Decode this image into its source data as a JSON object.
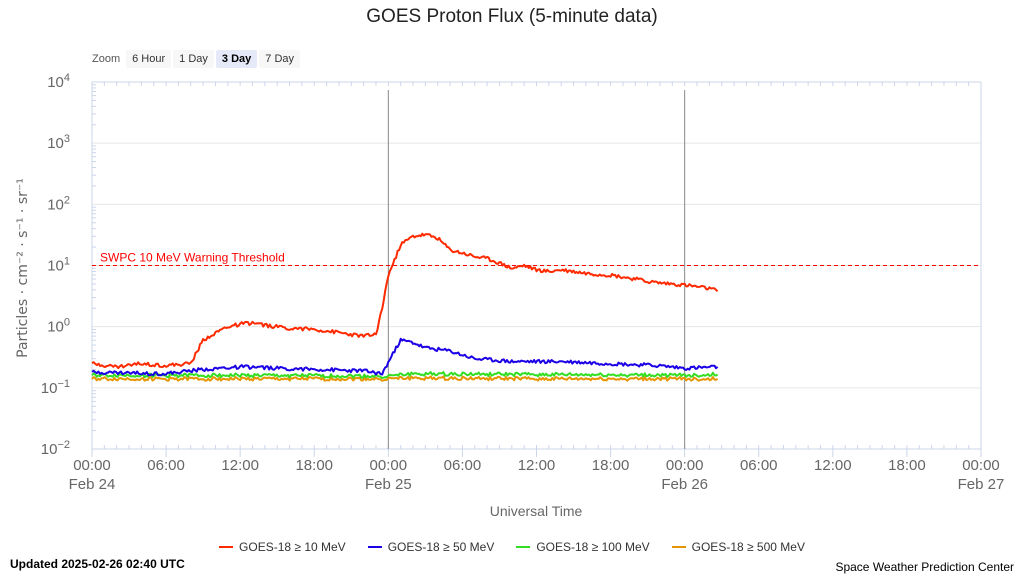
{
  "title": "GOES Proton Flux (5-minute data)",
  "zoom": {
    "label": "Zoom",
    "buttons": [
      "6 Hour",
      "1 Day",
      "3 Day",
      "7 Day"
    ],
    "active": "3 Day"
  },
  "updated": "Updated 2025-02-26 02:40 UTC",
  "credit": "Space Weather Prediction Center",
  "chart_data": {
    "type": "line",
    "title": "GOES Proton Flux (5-minute data)",
    "xlabel": "Universal Time",
    "ylabel": "Particles · cm⁻² · s⁻¹ · sr⁻¹",
    "y_scale": "log",
    "ylim": [
      0.01,
      10000
    ],
    "y_tick_labels": [
      {
        "base": "10",
        "exp": "4",
        "value": 10000
      },
      {
        "base": "10",
        "exp": "3",
        "value": 1000
      },
      {
        "base": "10",
        "exp": "2",
        "value": 100
      },
      {
        "base": "10",
        "exp": "1",
        "value": 10
      },
      {
        "base": "10",
        "exp": "0",
        "value": 1
      },
      {
        "base": "10",
        "exp": "−1",
        "value": 0.1
      },
      {
        "base": "10",
        "exp": "−2",
        "value": 0.01
      }
    ],
    "x_range": [
      "2025-02-24 00:00",
      "2025-02-27 00:00"
    ],
    "x_tick_labels": [
      {
        "time": "00:00",
        "date": "Feb 24"
      },
      {
        "time": "06:00",
        "date": ""
      },
      {
        "time": "12:00",
        "date": ""
      },
      {
        "time": "18:00",
        "date": ""
      },
      {
        "time": "00:00",
        "date": "Feb 25"
      },
      {
        "time": "06:00",
        "date": ""
      },
      {
        "time": "12:00",
        "date": ""
      },
      {
        "time": "18:00",
        "date": ""
      },
      {
        "time": "00:00",
        "date": "Feb 26"
      },
      {
        "time": "06:00",
        "date": ""
      },
      {
        "time": "12:00",
        "date": ""
      },
      {
        "time": "18:00",
        "date": ""
      },
      {
        "time": "00:00",
        "date": "Feb 27"
      }
    ],
    "grid": true,
    "legend_position": "bottom",
    "threshold": {
      "label": "SWPC 10 MeV Warning Threshold",
      "value": 10,
      "color": "#ff0000"
    },
    "day_markers": [
      "2025-02-25 00:00",
      "2025-02-26 00:00"
    ],
    "series": [
      {
        "name": "GOES-18 ≥ 10 MeV",
        "color": "#ff2a00",
        "x": [
          "2025-02-24 00:00",
          "2025-02-24 02:00",
          "2025-02-24 04:00",
          "2025-02-24 06:00",
          "2025-02-24 08:00",
          "2025-02-24 09:00",
          "2025-02-24 10:00",
          "2025-02-24 11:00",
          "2025-02-24 12:00",
          "2025-02-24 13:00",
          "2025-02-24 14:00",
          "2025-02-24 16:00",
          "2025-02-24 18:00",
          "2025-02-24 20:00",
          "2025-02-24 22:00",
          "2025-02-24 23:00",
          "2025-02-24 23:30",
          "2025-02-25 00:00",
          "2025-02-25 00:30",
          "2025-02-25 01:00",
          "2025-02-25 02:00",
          "2025-02-25 03:00",
          "2025-02-25 04:00",
          "2025-02-25 05:00",
          "2025-02-25 06:00",
          "2025-02-25 07:00",
          "2025-02-25 08:00",
          "2025-02-25 09:00",
          "2025-02-25 10:00",
          "2025-02-25 11:00",
          "2025-02-25 12:00",
          "2025-02-25 13:00",
          "2025-02-25 14:00",
          "2025-02-25 15:00",
          "2025-02-25 16:00",
          "2025-02-25 17:00",
          "2025-02-25 18:00",
          "2025-02-25 19:00",
          "2025-02-25 20:00",
          "2025-02-25 21:00",
          "2025-02-25 22:00",
          "2025-02-25 23:00",
          "2025-02-26 00:00",
          "2025-02-26 01:00",
          "2025-02-26 02:00",
          "2025-02-26 02:40"
        ],
        "values": [
          0.25,
          0.22,
          0.25,
          0.23,
          0.25,
          0.6,
          0.8,
          1.0,
          1.1,
          1.15,
          1.05,
          0.95,
          0.9,
          0.8,
          0.7,
          0.75,
          2.0,
          7.0,
          12.0,
          22.0,
          30.0,
          32.0,
          28.0,
          18.0,
          16.0,
          14.0,
          13.0,
          11.0,
          9.0,
          10.0,
          8.5,
          8.0,
          8.5,
          8.0,
          7.5,
          7.2,
          7.0,
          6.5,
          6.0,
          5.5,
          5.2,
          5.0,
          4.8,
          4.5,
          4.2,
          3.8
        ]
      },
      {
        "name": "GOES-18 ≥ 50 MeV",
        "color": "#1c00e6",
        "x": [
          "2025-02-24 00:00",
          "2025-02-24 06:00",
          "2025-02-24 09:00",
          "2025-02-24 12:00",
          "2025-02-24 18:00",
          "2025-02-24 22:00",
          "2025-02-24 23:30",
          "2025-02-25 00:30",
          "2025-02-25 01:00",
          "2025-02-25 02:00",
          "2025-02-25 03:00",
          "2025-02-25 05:00",
          "2025-02-25 07:00",
          "2025-02-25 10:00",
          "2025-02-25 14:00",
          "2025-02-25 18:00",
          "2025-02-25 22:00",
          "2025-02-26 00:00",
          "2025-02-26 02:40"
        ],
        "values": [
          0.18,
          0.17,
          0.2,
          0.22,
          0.2,
          0.19,
          0.17,
          0.4,
          0.6,
          0.55,
          0.45,
          0.4,
          0.3,
          0.27,
          0.27,
          0.25,
          0.23,
          0.21,
          0.22
        ]
      },
      {
        "name": "GOES-18 ≥ 100 MeV",
        "color": "#33dd22",
        "x": [
          "2025-02-24 00:00",
          "2025-02-24 12:00",
          "2025-02-25 00:00",
          "2025-02-25 02:00",
          "2025-02-25 12:00",
          "2025-02-26 00:00",
          "2025-02-26 02:40"
        ],
        "values": [
          0.16,
          0.16,
          0.155,
          0.17,
          0.165,
          0.16,
          0.165
        ]
      },
      {
        "name": "GOES-18 ≥ 500 MeV",
        "color": "#e69500",
        "x": [
          "2025-02-24 00:00",
          "2025-02-24 12:00",
          "2025-02-25 00:00",
          "2025-02-25 02:00",
          "2025-02-25 12:00",
          "2025-02-26 00:00",
          "2025-02-26 02:40"
        ],
        "values": [
          0.14,
          0.14,
          0.14,
          0.145,
          0.14,
          0.14,
          0.14
        ]
      }
    ]
  }
}
